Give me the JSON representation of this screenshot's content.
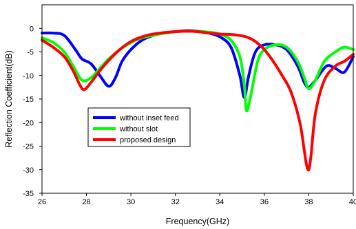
{
  "chart_data": {
    "type": "line",
    "title": "",
    "xlabel": "Frequency(GHz)",
    "ylabel": "Reflection Coefficient(dB)",
    "xlim": [
      26,
      40
    ],
    "ylim": [
      -35,
      5
    ],
    "xticks": [
      "26",
      "28",
      "30",
      "32",
      "34",
      "36",
      "38",
      "40"
    ],
    "yticks": [
      "0",
      "-5",
      "-10",
      "-15",
      "-20",
      "-25",
      "-30",
      "-35"
    ],
    "grid": false,
    "legend_position": "lower-left inside",
    "series": [
      {
        "name": "without inset feed",
        "color": "#0000ff",
        "x": [
          26,
          26.5,
          27,
          27.5,
          27.8,
          28.2,
          28.6,
          29,
          29.3,
          29.6,
          30,
          30.5,
          31,
          31.5,
          32,
          32.5,
          33,
          33.5,
          34,
          34.5,
          34.9,
          35.1,
          35.3,
          35.6,
          36,
          36.5,
          37,
          37.5,
          37.8,
          38,
          38.3,
          38.8,
          39.2,
          39.6,
          40
        ],
        "y": [
          -1,
          -1,
          -1.5,
          -4.5,
          -6.5,
          -7.5,
          -10,
          -12.3,
          -10.5,
          -7,
          -4.5,
          -2.5,
          -1.5,
          -1,
          -0.7,
          -0.5,
          -0.6,
          -1,
          -1.8,
          -4,
          -10,
          -14.7,
          -10,
          -5,
          -3.5,
          -3.5,
          -4.5,
          -8,
          -11.5,
          -12.5,
          -11,
          -8,
          -8.5,
          -9.3,
          -6
        ]
      },
      {
        "name": "without slot",
        "color": "#00ff00",
        "x": [
          26,
          26.5,
          27,
          27.4,
          27.8,
          28.2,
          28.6,
          29,
          29.5,
          30,
          30.5,
          31,
          31.5,
          32,
          32.5,
          33,
          33.5,
          34,
          34.5,
          34.9,
          35.1,
          35.2,
          35.4,
          35.7,
          36,
          36.5,
          37,
          37.5,
          37.8,
          38,
          38.3,
          38.7,
          39.2,
          39.6,
          40
        ],
        "y": [
          -2,
          -3,
          -5,
          -8,
          -11,
          -10.5,
          -8.5,
          -6.5,
          -4.5,
          -3,
          -2,
          -1.5,
          -1,
          -0.7,
          -0.6,
          -0.6,
          -0.8,
          -1.2,
          -2.5,
          -6,
          -12,
          -17.5,
          -14,
          -7,
          -4.5,
          -3.5,
          -4,
          -7,
          -10.5,
          -12.8,
          -11,
          -7,
          -5,
          -4,
          -4.5
        ]
      },
      {
        "name": "proposed design",
        "color": "#ff0000",
        "x": [
          26,
          26.5,
          27,
          27.4,
          27.7,
          27.9,
          28.2,
          28.6,
          29,
          29.5,
          30,
          30.5,
          31,
          31.5,
          32,
          32.5,
          33,
          33.5,
          34,
          34.5,
          35,
          35.3,
          35.6,
          36,
          36.4,
          36.8,
          37.2,
          37.6,
          37.8,
          37.9,
          38,
          38.1,
          38.3,
          38.7,
          39.2,
          39.6,
          40
        ],
        "y": [
          -2.5,
          -4,
          -6,
          -9,
          -12,
          -13,
          -11.5,
          -9,
          -6.8,
          -4.5,
          -2.8,
          -1.8,
          -1.2,
          -0.9,
          -0.7,
          -0.6,
          -0.7,
          -1,
          -1.2,
          -1.3,
          -1.6,
          -2,
          -2.8,
          -4.5,
          -7,
          -10,
          -13.5,
          -20,
          -26,
          -29,
          -30,
          -27,
          -18,
          -11,
          -8,
          -7,
          -5.5
        ]
      }
    ]
  }
}
